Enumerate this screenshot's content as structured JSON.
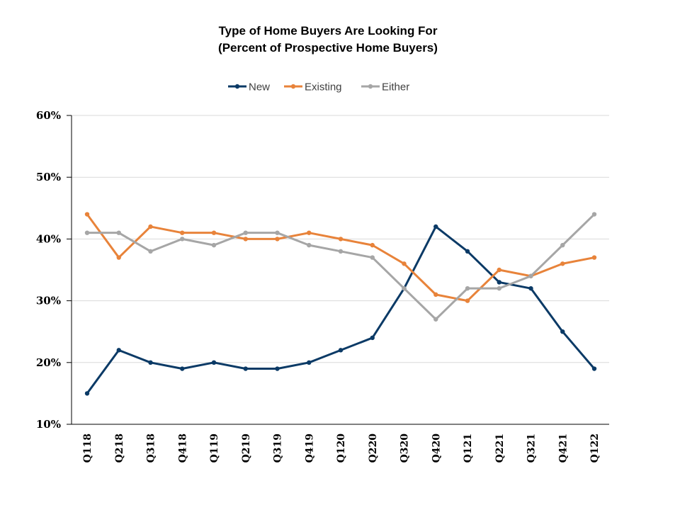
{
  "chart_data": {
    "type": "line",
    "title_line1": "Type of Home Buyers Are Looking For",
    "title_line2": "(Percent of Prospective Home Buyers)",
    "categories": [
      "Q118",
      "Q218",
      "Q318",
      "Q418",
      "Q119",
      "Q219",
      "Q319",
      "Q419",
      "Q120",
      "Q220",
      "Q320",
      "Q420",
      "Q121",
      "Q221",
      "Q321",
      "Q421",
      "Q122"
    ],
    "series": [
      {
        "name": "New",
        "color": "#0b3a66",
        "values": [
          15,
          22,
          20,
          19,
          20,
          19,
          19,
          20,
          22,
          24,
          32,
          42,
          38,
          33,
          32,
          25,
          19
        ]
      },
      {
        "name": "Existing",
        "color": "#e8833a",
        "values": [
          44,
          37,
          42,
          41,
          41,
          40,
          40,
          41,
          40,
          39,
          36,
          31,
          30,
          35,
          34,
          36,
          37
        ]
      },
      {
        "name": "Either",
        "color": "#a6a6a6",
        "values": [
          41,
          41,
          38,
          40,
          39,
          41,
          41,
          39,
          38,
          37,
          32,
          27,
          32,
          32,
          34,
          39,
          44
        ]
      }
    ],
    "y_ticks": [
      "10%",
      "20%",
      "30%",
      "40%",
      "50%",
      "60%"
    ],
    "ylim": [
      10,
      60
    ],
    "grid": true,
    "legend_position": "top-center"
  }
}
